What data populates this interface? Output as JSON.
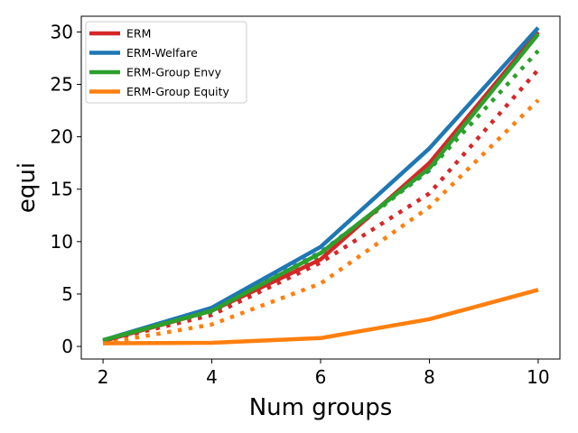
{
  "chart_data": {
    "type": "line",
    "xlabel": "Num groups",
    "ylabel": "equi",
    "x": [
      2,
      4,
      6,
      8,
      10
    ],
    "xlim": [
      1.6,
      10.4
    ],
    "ylim": [
      -1.2,
      31.5
    ],
    "xticks": [
      "2",
      "4",
      "6",
      "8",
      "10"
    ],
    "yticks": [
      "0",
      "5",
      "10",
      "15",
      "20",
      "25",
      "30"
    ],
    "grid": false,
    "legend_position": "top-left",
    "series": [
      {
        "name": "ERM",
        "style": "solid",
        "color": "#d62728",
        "values": [
          0.5,
          3.4,
          8.3,
          17.5,
          30.0
        ]
      },
      {
        "name": "ERM-Welfare",
        "style": "solid",
        "color": "#1f77b4",
        "values": [
          0.6,
          3.7,
          9.5,
          18.9,
          30.4
        ]
      },
      {
        "name": "ERM-Group Envy",
        "style": "solid",
        "color": "#2ca02c",
        "values": [
          0.6,
          3.4,
          8.9,
          17.0,
          29.8
        ]
      },
      {
        "name": "ERM-Group Equity",
        "style": "solid",
        "color": "#ff7f0e",
        "values": [
          0.3,
          0.35,
          0.8,
          2.6,
          5.4
        ]
      },
      {
        "style": "dotted",
        "color": "#d62728",
        "values": [
          0.5,
          3.0,
          8.0,
          14.6,
          26.4
        ]
      },
      {
        "style": "dotted",
        "color": "#1f77b4",
        "values": [
          0.6,
          3.4,
          9.0,
          16.8,
          30.1
        ]
      },
      {
        "style": "dotted",
        "color": "#2ca02c",
        "values": [
          0.6,
          3.3,
          8.7,
          16.9,
          28.2
        ]
      },
      {
        "style": "dotted",
        "color": "#ff7f0e",
        "values": [
          0.3,
          2.1,
          6.0,
          13.3,
          23.5
        ]
      }
    ],
    "legend": [
      "ERM",
      "ERM-Welfare",
      "ERM-Group Envy",
      "ERM-Group Equity"
    ],
    "legend_colors": [
      "#d62728",
      "#1f77b4",
      "#2ca02c",
      "#ff7f0e"
    ]
  }
}
